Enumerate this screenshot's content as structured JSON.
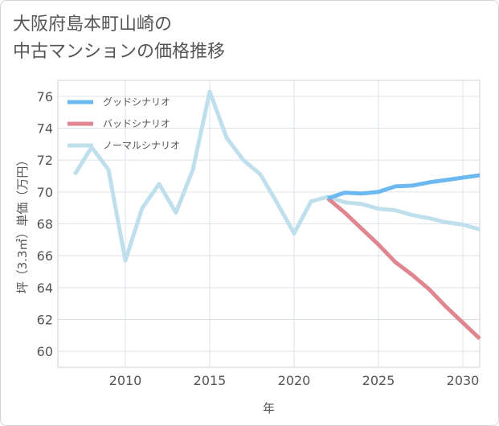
{
  "title": {
    "line1": "大阪府島本町山崎の",
    "line2": "中古マンションの価格推移"
  },
  "chart_data": {
    "type": "line",
    "xlabel": "年",
    "ylabel": "坪（3.3㎡）単価（万円）",
    "xlim": [
      2006,
      2031
    ],
    "ylim": [
      59,
      77
    ],
    "xticks": [
      2010,
      2015,
      2020,
      2025,
      2030
    ],
    "yticks": [
      60,
      62,
      64,
      66,
      68,
      70,
      72,
      74,
      76
    ],
    "legend_position": "top-left",
    "series": [
      {
        "name": "グッドシナリオ",
        "color": "#6cb8f0",
        "x": [
          2022,
          2023,
          2024,
          2025,
          2026,
          2027,
          2028,
          2029,
          2030,
          2031
        ],
        "y": [
          69.6,
          69.95,
          69.9,
          70.0,
          70.35,
          70.4,
          70.6,
          70.75,
          70.9,
          71.05
        ]
      },
      {
        "name": "バッドシナリオ",
        "color": "#e0868f",
        "x": [
          2022,
          2023,
          2024,
          2025,
          2026,
          2027,
          2028,
          2029,
          2030,
          2031
        ],
        "y": [
          69.6,
          68.7,
          67.7,
          66.7,
          65.6,
          64.8,
          63.9,
          62.8,
          61.8,
          60.8
        ]
      },
      {
        "name": "ノーマルシナリオ",
        "color": "#bfdfed",
        "x": [
          2007,
          2008,
          2009,
          2010,
          2011,
          2012,
          2013,
          2014,
          2015,
          2016,
          2017,
          2018,
          2019,
          2020,
          2021,
          2022,
          2023,
          2024,
          2025,
          2026,
          2027,
          2028,
          2029,
          2030,
          2031
        ],
        "y": [
          71.1,
          72.8,
          71.4,
          65.7,
          69.0,
          70.5,
          68.7,
          71.4,
          76.3,
          73.4,
          72.0,
          71.1,
          69.3,
          67.4,
          69.4,
          69.7,
          69.35,
          69.25,
          68.95,
          68.85,
          68.55,
          68.35,
          68.1,
          67.95,
          67.65
        ]
      }
    ]
  }
}
